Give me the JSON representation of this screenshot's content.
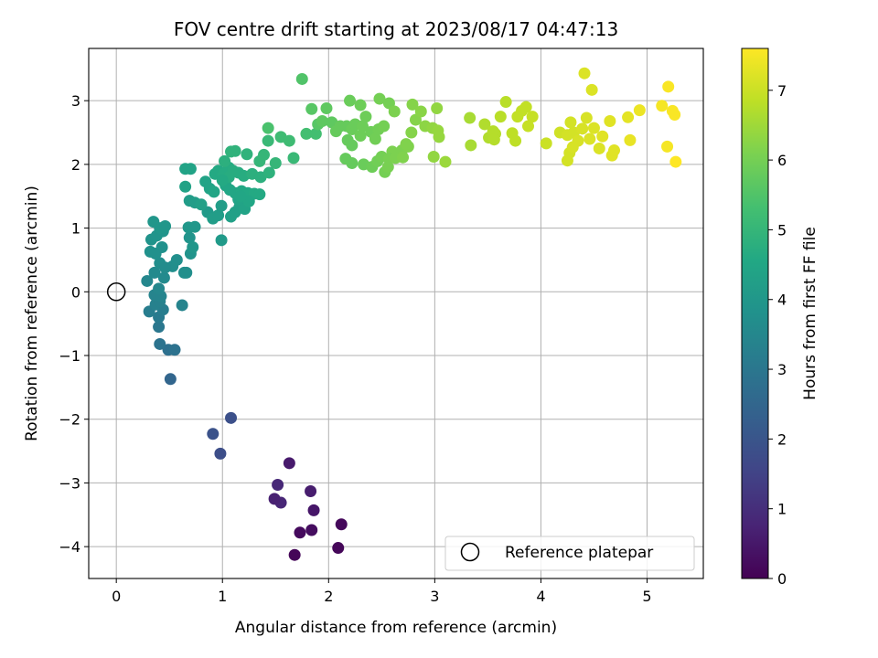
{
  "chart_data": {
    "type": "scatter",
    "title": "FOV centre drift starting at 2023/08/17 04:47:13",
    "xlabel": "Angular distance from reference (arcmin)",
    "ylabel": "Rotation from reference (arcmin)",
    "xlim": [
      -0.26,
      5.53
    ],
    "ylim": [
      -4.5,
      3.82
    ],
    "xticks": [
      0,
      1,
      2,
      3,
      4,
      5
    ],
    "yticks": [
      -4,
      -3,
      -2,
      -1,
      0,
      1,
      2,
      3
    ],
    "grid": true,
    "colormap": "viridis",
    "colorbar": {
      "label": "Hours from first FF file",
      "range": [
        0,
        7.6
      ],
      "ticks": [
        0,
        1,
        2,
        3,
        4,
        5,
        6,
        7
      ]
    },
    "legend": {
      "position": "lower-right",
      "entries": [
        "Reference platepar"
      ]
    },
    "reference_point": {
      "x": 0,
      "y": 0
    },
    "points": [
      [
        1.68,
        -4.13,
        0.1
      ],
      [
        2.09,
        -4.02,
        0.12
      ],
      [
        1.73,
        -3.78,
        0.2
      ],
      [
        1.84,
        -3.74,
        0.25
      ],
      [
        2.12,
        -3.65,
        0.15
      ],
      [
        1.86,
        -3.43,
        0.45
      ],
      [
        1.55,
        -3.31,
        0.8
      ],
      [
        1.49,
        -3.25,
        0.7
      ],
      [
        1.83,
        -3.13,
        0.6
      ],
      [
        1.52,
        -3.03,
        0.85
      ],
      [
        1.63,
        -2.69,
        0.55
      ],
      [
        0.98,
        -2.54,
        1.8
      ],
      [
        0.91,
        -2.23,
        1.9
      ],
      [
        1.08,
        -1.98,
        1.85
      ],
      [
        0.51,
        -1.37,
        2.5
      ],
      [
        0.49,
        -0.91,
        2.8
      ],
      [
        0.55,
        -0.91,
        2.85
      ],
      [
        0.41,
        -0.82,
        2.9
      ],
      [
        0.4,
        -0.55,
        3.0
      ],
      [
        0.4,
        -0.4,
        3.1
      ],
      [
        0.44,
        -0.28,
        3.2
      ],
      [
        0.31,
        -0.31,
        3.2
      ],
      [
        0.37,
        -0.2,
        3.3
      ],
      [
        0.41,
        -0.15,
        3.3
      ],
      [
        0.62,
        -0.21,
        3.4
      ],
      [
        0.36,
        -0.05,
        3.4
      ],
      [
        0.42,
        -0.07,
        3.4
      ],
      [
        0.4,
        0.05,
        3.5
      ],
      [
        0.29,
        0.17,
        3.5
      ],
      [
        0.45,
        0.22,
        3.6
      ],
      [
        0.36,
        0.3,
        3.6
      ],
      [
        0.53,
        0.4,
        3.7
      ],
      [
        0.64,
        0.3,
        3.7
      ],
      [
        0.41,
        0.45,
        3.7
      ],
      [
        0.46,
        0.38,
        3.65
      ],
      [
        0.57,
        0.5,
        3.75
      ],
      [
        0.32,
        0.63,
        3.8
      ],
      [
        0.37,
        0.6,
        3.8
      ],
      [
        0.43,
        0.7,
        3.8
      ],
      [
        0.7,
        0.6,
        3.85
      ],
      [
        0.66,
        0.3,
        3.75
      ],
      [
        0.33,
        0.82,
        3.85
      ],
      [
        0.38,
        0.88,
        3.9
      ],
      [
        0.44,
        0.95,
        3.9
      ],
      [
        0.69,
        0.85,
        3.9
      ],
      [
        0.41,
        1.0,
        3.95
      ],
      [
        0.46,
        1.03,
        3.95
      ],
      [
        0.35,
        1.1,
        3.95
      ],
      [
        0.68,
        1.01,
        4.0
      ],
      [
        0.74,
        1.02,
        4.0
      ],
      [
        0.72,
        0.7,
        3.95
      ],
      [
        0.99,
        0.81,
        4.1
      ],
      [
        0.86,
        1.25,
        4.1
      ],
      [
        0.91,
        1.15,
        4.2
      ],
      [
        0.96,
        1.2,
        4.2
      ],
      [
        0.99,
        1.35,
        4.2
      ],
      [
        0.69,
        1.43,
        4.15
      ],
      [
        0.74,
        1.4,
        4.2
      ],
      [
        1.08,
        1.18,
        4.3
      ],
      [
        1.12,
        1.25,
        4.3
      ],
      [
        1.16,
        1.33,
        4.3
      ],
      [
        1.21,
        1.3,
        4.4
      ],
      [
        1.15,
        1.45,
        4.4
      ],
      [
        0.8,
        1.37,
        4.3
      ],
      [
        0.65,
        1.65,
        4.35
      ],
      [
        0.84,
        1.73,
        4.4
      ],
      [
        0.88,
        1.62,
        4.4
      ],
      [
        0.92,
        1.57,
        4.45
      ],
      [
        1.03,
        1.67,
        4.5
      ],
      [
        1.07,
        1.6,
        4.5
      ],
      [
        1.12,
        1.55,
        4.5
      ],
      [
        1.18,
        1.58,
        4.55
      ],
      [
        1.24,
        1.55,
        4.55
      ],
      [
        1.3,
        1.54,
        4.6
      ],
      [
        1.35,
        1.53,
        4.6
      ],
      [
        1.25,
        1.42,
        4.5
      ],
      [
        1.17,
        1.5,
        4.5
      ],
      [
        0.93,
        1.85,
        4.6
      ],
      [
        0.96,
        1.9,
        4.6
      ],
      [
        1.01,
        1.85,
        4.65
      ],
      [
        1.06,
        1.95,
        4.65
      ],
      [
        1.1,
        1.9,
        4.7
      ],
      [
        1.15,
        1.87,
        4.7
      ],
      [
        1.2,
        1.82,
        4.7
      ],
      [
        1.28,
        1.85,
        4.8
      ],
      [
        1.36,
        1.8,
        4.8
      ],
      [
        1.44,
        1.87,
        4.85
      ],
      [
        1.06,
        1.8,
        4.7
      ],
      [
        1.0,
        1.75,
        4.6
      ],
      [
        0.65,
        1.93,
        4.4
      ],
      [
        0.7,
        1.93,
        4.4
      ],
      [
        1.02,
        2.05,
        4.8
      ],
      [
        1.08,
        2.2,
        4.9
      ],
      [
        1.12,
        2.21,
        4.9
      ],
      [
        1.23,
        2.16,
        4.9
      ],
      [
        1.35,
        2.05,
        5.0
      ],
      [
        1.39,
        2.15,
        5.0
      ],
      [
        1.43,
        2.37,
        5.1
      ],
      [
        1.5,
        2.02,
        5.0
      ],
      [
        1.55,
        2.43,
        5.2
      ],
      [
        1.63,
        2.37,
        5.2
      ],
      [
        1.67,
        2.1,
        5.1
      ],
      [
        1.79,
        2.48,
        5.3
      ],
      [
        1.88,
        2.48,
        5.3
      ],
      [
        1.43,
        2.57,
        5.4
      ],
      [
        1.75,
        3.34,
        5.5
      ],
      [
        1.84,
        2.87,
        5.6
      ],
      [
        1.9,
        2.63,
        5.6
      ],
      [
        1.94,
        2.68,
        5.7
      ],
      [
        1.98,
        2.88,
        5.7
      ],
      [
        2.03,
        2.66,
        5.7
      ],
      [
        2.07,
        2.52,
        5.8
      ],
      [
        2.11,
        2.6,
        5.8
      ],
      [
        2.17,
        2.6,
        5.8
      ],
      [
        2.22,
        2.55,
        5.85
      ],
      [
        2.25,
        2.63,
        5.85
      ],
      [
        2.18,
        2.38,
        5.8
      ],
      [
        2.22,
        2.3,
        5.8
      ],
      [
        2.3,
        2.45,
        5.9
      ],
      [
        2.32,
        2.6,
        5.9
      ],
      [
        2.35,
        2.75,
        5.9
      ],
      [
        2.4,
        2.51,
        5.9
      ],
      [
        2.44,
        2.4,
        5.95
      ],
      [
        2.47,
        2.55,
        5.95
      ],
      [
        2.52,
        2.6,
        6.0
      ],
      [
        2.2,
        3.0,
        5.85
      ],
      [
        2.3,
        2.93,
        5.9
      ],
      [
        2.48,
        3.03,
        6.0
      ],
      [
        2.57,
        2.96,
        6.0
      ],
      [
        2.62,
        2.83,
        6.1
      ],
      [
        2.16,
        2.09,
        5.8
      ],
      [
        2.22,
        2.02,
        5.8
      ],
      [
        2.33,
        2.0,
        5.85
      ],
      [
        2.41,
        1.96,
        5.9
      ],
      [
        2.46,
        2.05,
        5.95
      ],
      [
        2.5,
        2.12,
        6.0
      ],
      [
        2.53,
        1.88,
        6.0
      ],
      [
        2.56,
        1.96,
        6.05
      ],
      [
        2.6,
        2.2,
        6.1
      ],
      [
        2.65,
        2.17,
        6.1
      ],
      [
        2.69,
        2.22,
        6.1
      ],
      [
        2.75,
        2.28,
        6.15
      ],
      [
        2.78,
        2.5,
        6.2
      ],
      [
        2.79,
        2.94,
        6.2
      ],
      [
        2.82,
        2.7,
        6.2
      ],
      [
        2.87,
        2.83,
        6.25
      ],
      [
        2.91,
        2.6,
        6.3
      ],
      [
        2.98,
        2.57,
        6.35
      ],
      [
        3.03,
        2.53,
        6.4
      ],
      [
        3.02,
        2.88,
        6.35
      ],
      [
        3.04,
        2.43,
        6.4
      ],
      [
        2.99,
        2.12,
        6.35
      ],
      [
        3.1,
        2.04,
        6.45
      ],
      [
        2.57,
        2.09,
        6.05
      ],
      [
        2.63,
        2.1,
        6.1
      ],
      [
        2.7,
        2.11,
        6.15
      ],
      [
        2.73,
        2.32,
        6.15
      ],
      [
        3.33,
        2.73,
        6.6
      ],
      [
        3.34,
        2.3,
        6.6
      ],
      [
        3.47,
        2.63,
        6.7
      ],
      [
        3.51,
        2.42,
        6.7
      ],
      [
        3.55,
        2.52,
        6.75
      ],
      [
        3.57,
        2.48,
        6.75
      ],
      [
        3.62,
        2.75,
        6.8
      ],
      [
        3.67,
        2.98,
        6.8
      ],
      [
        3.73,
        2.49,
        6.85
      ],
      [
        3.76,
        2.37,
        6.85
      ],
      [
        3.78,
        2.75,
        6.9
      ],
      [
        3.82,
        2.84,
        6.9
      ],
      [
        3.86,
        2.9,
        6.9
      ],
      [
        3.88,
        2.6,
        6.95
      ],
      [
        3.92,
        2.75,
        6.95
      ],
      [
        3.56,
        2.39,
        6.75
      ],
      [
        4.05,
        2.33,
        7.0
      ],
      [
        4.18,
        2.5,
        7.05
      ],
      [
        4.25,
        2.46,
        7.1
      ],
      [
        4.28,
        2.66,
        7.1
      ],
      [
        4.31,
        2.5,
        7.1
      ],
      [
        4.35,
        2.37,
        7.15
      ],
      [
        4.39,
        2.56,
        7.15
      ],
      [
        4.41,
        3.43,
        7.2
      ],
      [
        4.43,
        2.73,
        7.15
      ],
      [
        4.48,
        3.17,
        7.2
      ],
      [
        4.5,
        2.57,
        7.2
      ],
      [
        4.25,
        2.06,
        7.1
      ],
      [
        4.27,
        2.18,
        7.1
      ],
      [
        4.3,
        2.27,
        7.15
      ],
      [
        4.46,
        2.4,
        7.2
      ],
      [
        4.58,
        2.44,
        7.25
      ],
      [
        4.65,
        2.68,
        7.25
      ],
      [
        4.67,
        2.14,
        7.25
      ],
      [
        4.69,
        2.22,
        7.25
      ],
      [
        4.82,
        2.74,
        7.3
      ],
      [
        4.84,
        2.38,
        7.35
      ],
      [
        4.93,
        2.85,
        7.4
      ],
      [
        5.14,
        2.92,
        7.5
      ],
      [
        5.19,
        2.28,
        7.5
      ],
      [
        5.2,
        3.22,
        7.55
      ],
      [
        5.24,
        2.84,
        7.55
      ],
      [
        5.26,
        2.78,
        7.55
      ],
      [
        5.27,
        2.04,
        7.6
      ],
      [
        4.55,
        2.25,
        7.2
      ]
    ]
  }
}
